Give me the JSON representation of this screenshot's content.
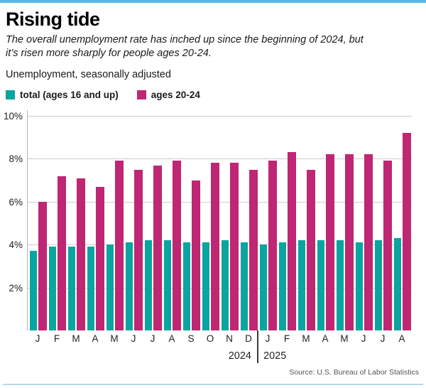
{
  "header": {
    "title": "Rising tide",
    "subtitle": "The overall unemployment rate has inched up since the beginning of 2024, but it’s risen more sharply for people ages 20-24.",
    "measure_label": "Unemployment, seasonally adjusted"
  },
  "legend": {
    "total_label": "total (ages 16 and up)",
    "ages_label": "ages 20-24"
  },
  "colors": {
    "total": "#0aa5a0",
    "ages_20_24": "#bf2674",
    "top_rule": "#57b8e8",
    "bottom_rule": "#b9d7ea",
    "gridline": "#cccccc",
    "year_divider": "#3a3a3a"
  },
  "chart_data": {
    "type": "bar",
    "title": "Unemployment, seasonally adjusted",
    "categories": [
      "J",
      "F",
      "M",
      "A",
      "M",
      "J",
      "J",
      "A",
      "S",
      "O",
      "N",
      "D",
      "J",
      "F",
      "M",
      "A",
      "M",
      "J",
      "J",
      "A"
    ],
    "series": [
      {
        "name": "total (ages 16 and up)",
        "color": "#0aa5a0",
        "values": [
          3.7,
          3.9,
          3.9,
          3.9,
          4.0,
          4.1,
          4.2,
          4.2,
          4.1,
          4.1,
          4.2,
          4.1,
          4.0,
          4.1,
          4.2,
          4.2,
          4.2,
          4.1,
          4.2,
          4.3
        ]
      },
      {
        "name": "ages 20-24",
        "color": "#bf2674",
        "values": [
          6.0,
          7.2,
          7.1,
          6.7,
          7.9,
          7.5,
          7.7,
          7.9,
          7.0,
          7.8,
          7.8,
          7.5,
          7.9,
          8.3,
          7.5,
          8.2,
          8.2,
          8.2,
          7.9,
          9.2
        ]
      }
    ],
    "year_groups": [
      {
        "label": "2024",
        "start": 0,
        "end": 11
      },
      {
        "label": "2025",
        "start": 12,
        "end": 19
      }
    ],
    "ylim": [
      0,
      10
    ],
    "yticks": [
      "2%",
      "4%",
      "6%",
      "8%",
      "10%"
    ],
    "ytick_values": [
      2,
      4,
      6,
      8,
      10
    ],
    "grid": true,
    "legend_position": "top",
    "xlabel": "",
    "ylabel": ""
  },
  "footer": {
    "source": "Source: U.S. Bureau of Labor Statistics"
  }
}
